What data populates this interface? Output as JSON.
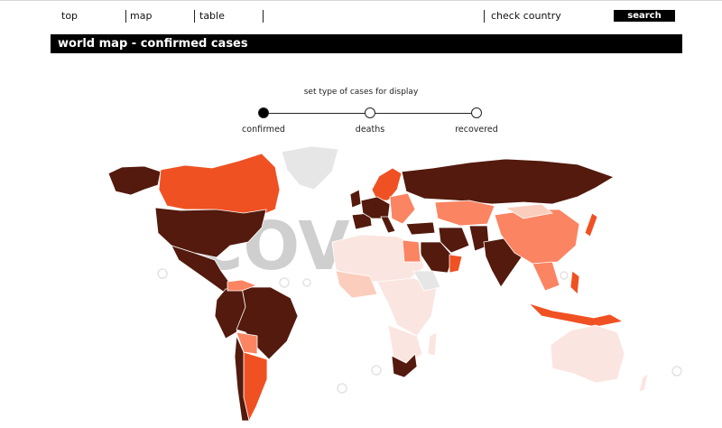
{
  "nav": {
    "items": [
      "top",
      "map",
      "table"
    ],
    "check_country": "check country",
    "search_label": "search"
  },
  "title": "world map - confirmed cases",
  "case_selector": {
    "prompt": "set type of cases for display",
    "options": [
      "confirmed",
      "deaths",
      "recovered"
    ],
    "selected": "confirmed"
  },
  "watermark": "COV",
  "colors": {
    "very_high": "#531a0d",
    "high": "#f05123",
    "medium": "#fb8463",
    "low": "#fbcdbd",
    "very_low": "#fbe5e0",
    "no_data": "#e6e6e6",
    "banner": "#000000"
  }
}
